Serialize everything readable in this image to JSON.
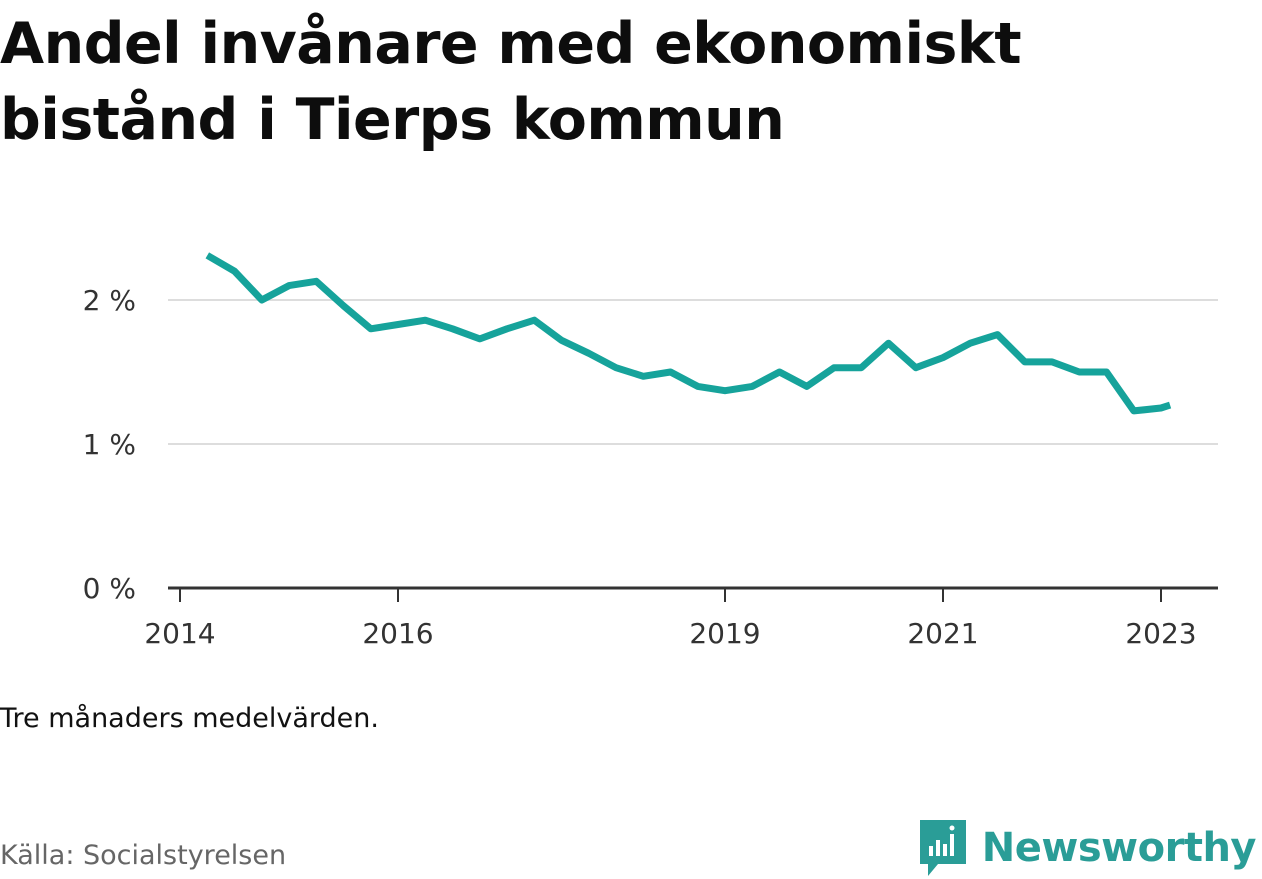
{
  "title": "Andel invånare med ekonomiskt bistånd i Tierps kommun",
  "note": "Tre månaders medelvärden.",
  "source": "Källa: Socialstyrelsen",
  "brand": "Newsworthy",
  "colors": {
    "line": "#16a39b",
    "brand": "#2a9d97",
    "grid": "#dddddd",
    "axis": "#333333"
  },
  "chart_data": {
    "type": "line",
    "title": "Andel invånare med ekonomiskt bistånd i Tierps kommun",
    "xlabel": "",
    "ylabel": "",
    "ylim": [
      0,
      2.5
    ],
    "grid": true,
    "y_ticks": [
      {
        "value": 0,
        "label": "0 %"
      },
      {
        "value": 1,
        "label": "1 %"
      },
      {
        "value": 2,
        "label": "2 %"
      }
    ],
    "x_ticks": [
      {
        "value": "2014-01",
        "label": "2014"
      },
      {
        "value": "2016-01",
        "label": "2016"
      },
      {
        "value": "2019-01",
        "label": "2019"
      },
      {
        "value": "2021-01",
        "label": "2021"
      },
      {
        "value": "2023-01",
        "label": "2023"
      }
    ],
    "series": [
      {
        "points": [
          {
            "x": "2014-04",
            "y": 2.31
          },
          {
            "x": "2014-07",
            "y": 2.2
          },
          {
            "x": "2014-10",
            "y": 2.0
          },
          {
            "x": "2015-01",
            "y": 2.1
          },
          {
            "x": "2015-04",
            "y": 2.13
          },
          {
            "x": "2015-07",
            "y": 1.96
          },
          {
            "x": "2015-10",
            "y": 1.8
          },
          {
            "x": "2016-01",
            "y": 1.83
          },
          {
            "x": "2016-04",
            "y": 1.86
          },
          {
            "x": "2016-07",
            "y": 1.8
          },
          {
            "x": "2016-10",
            "y": 1.73
          },
          {
            "x": "2017-01",
            "y": 1.8
          },
          {
            "x": "2017-04",
            "y": 1.86
          },
          {
            "x": "2017-07",
            "y": 1.72
          },
          {
            "x": "2017-10",
            "y": 1.63
          },
          {
            "x": "2018-01",
            "y": 1.53
          },
          {
            "x": "2018-04",
            "y": 1.47
          },
          {
            "x": "2018-07",
            "y": 1.5
          },
          {
            "x": "2018-10",
            "y": 1.4
          },
          {
            "x": "2019-01",
            "y": 1.37
          },
          {
            "x": "2019-04",
            "y": 1.4
          },
          {
            "x": "2019-07",
            "y": 1.5
          },
          {
            "x": "2019-10",
            "y": 1.4
          },
          {
            "x": "2020-01",
            "y": 1.53
          },
          {
            "x": "2020-04",
            "y": 1.53
          },
          {
            "x": "2020-07",
            "y": 1.7
          },
          {
            "x": "2020-10",
            "y": 1.53
          },
          {
            "x": "2021-01",
            "y": 1.6
          },
          {
            "x": "2021-04",
            "y": 1.7
          },
          {
            "x": "2021-07",
            "y": 1.76
          },
          {
            "x": "2021-10",
            "y": 1.57
          },
          {
            "x": "2022-01",
            "y": 1.57
          },
          {
            "x": "2022-04",
            "y": 1.5
          },
          {
            "x": "2022-07",
            "y": 1.5
          },
          {
            "x": "2022-10",
            "y": 1.23
          },
          {
            "x": "2023-01",
            "y": 1.25
          },
          {
            "x": "2023-02",
            "y": 1.27
          }
        ]
      }
    ]
  }
}
